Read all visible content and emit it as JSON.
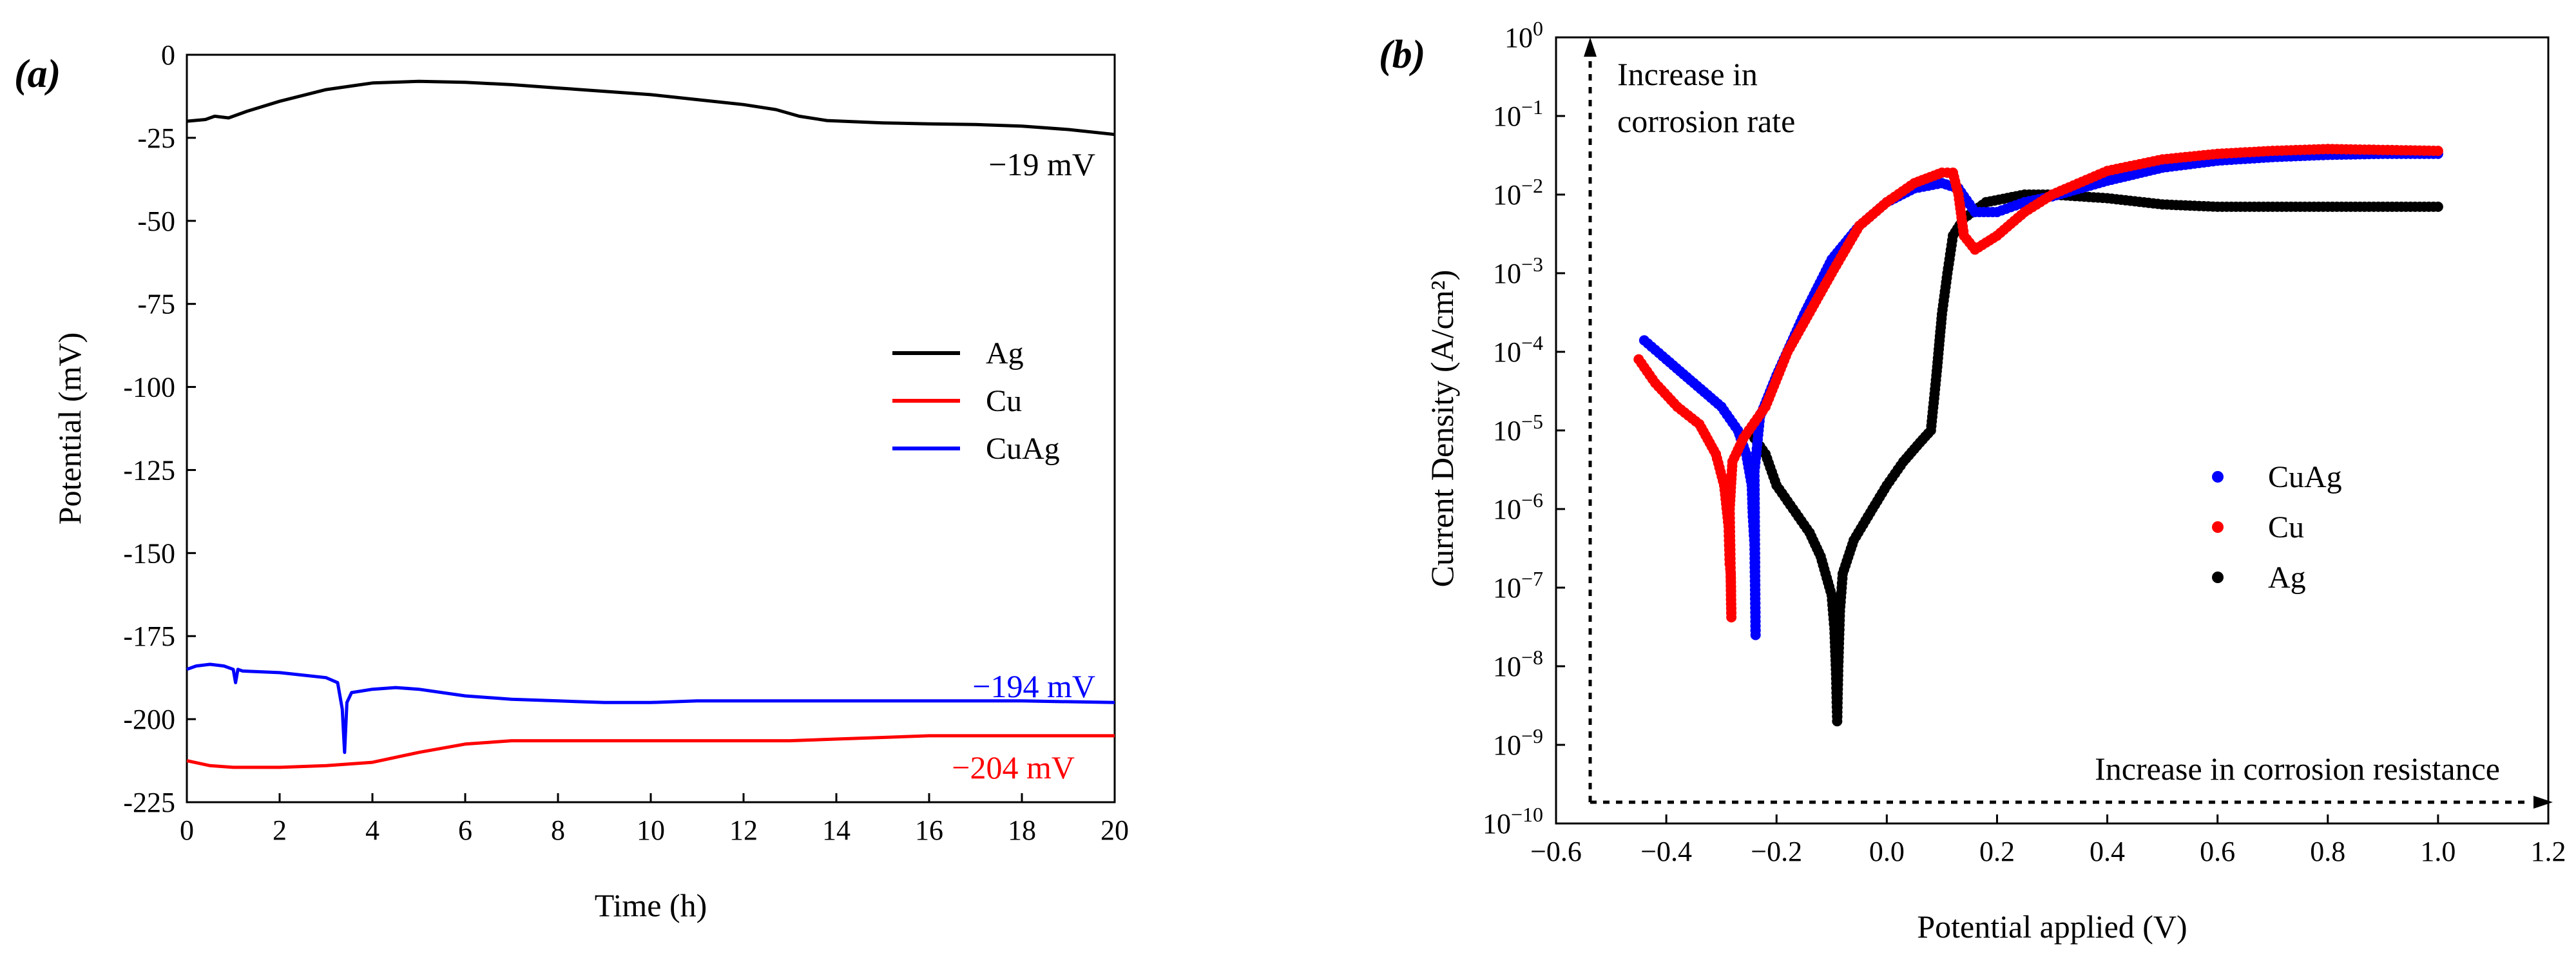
{
  "chart_data": [
    {
      "panel_label": "(a)",
      "type": "line",
      "xlabel": "Time (h)",
      "ylabel": "Potential (mV)",
      "xlim": [
        0,
        20
      ],
      "ylim": [
        -225,
        0
      ],
      "xticks": [
        0,
        2,
        4,
        6,
        8,
        10,
        12,
        14,
        16,
        18,
        20
      ],
      "yticks": [
        0,
        -25,
        -50,
        -75,
        -100,
        -125,
        -150,
        -175,
        -200,
        -225
      ],
      "x_tick_labels": [
        "0",
        "2",
        "4",
        "6",
        "8",
        "10",
        "12",
        "14",
        "16",
        "18",
        "20"
      ],
      "y_tick_labels": [
        "0",
        "-25",
        "-50",
        "-75",
        "-100",
        "-125",
        "-150",
        "-175",
        "-200",
        "-225"
      ],
      "grid": false,
      "legend_position": "center-right",
      "series": [
        {
          "name": "Ag",
          "color": "#000000",
          "annotation": "−19 mV",
          "x": [
            0,
            0.4,
            0.6,
            0.9,
            1.3,
            2,
            3,
            4,
            5,
            6,
            7,
            8,
            9,
            10,
            11,
            12,
            12.7,
            13.2,
            13.8,
            15,
            16,
            17,
            18,
            19,
            20
          ],
          "y": [
            -20,
            -19.5,
            -18.5,
            -19,
            -17,
            -14,
            -10.5,
            -8.5,
            -8,
            -8.3,
            -9,
            -10,
            -11,
            -12,
            -13.5,
            -15,
            -16.5,
            -18.5,
            -19.8,
            -20.5,
            -20.8,
            -21,
            -21.5,
            -22.5,
            -24
          ]
        },
        {
          "name": "Cu",
          "color": "#ff0000",
          "annotation": "−204 mV",
          "x": [
            0,
            0.5,
            1,
            2,
            3,
            4,
            5,
            6,
            7,
            8,
            9,
            10,
            11,
            12,
            13,
            14,
            15,
            16,
            17,
            18,
            19,
            20
          ],
          "y": [
            -212.5,
            -214,
            -214.5,
            -214.5,
            -214,
            -213,
            -210,
            -207.5,
            -206.5,
            -206.5,
            -206.5,
            -206.5,
            -206.5,
            -206.5,
            -206.5,
            -206,
            -205.5,
            -205,
            -205,
            -205,
            -205,
            -205
          ]
        },
        {
          "name": "CuAg",
          "color": "#0000ff",
          "annotation": "−194 mV",
          "x": [
            0,
            0.2,
            0.5,
            0.8,
            1,
            1.05,
            1.1,
            1.2,
            2,
            3,
            3.25,
            3.35,
            3.4,
            3.45,
            3.55,
            4,
            4.5,
            5,
            6,
            7,
            8,
            9,
            10,
            11,
            12,
            13,
            14,
            16,
            18,
            20
          ],
          "y": [
            -185,
            -184,
            -183.5,
            -184,
            -185,
            -189,
            -185,
            -185.5,
            -186,
            -187.5,
            -189,
            -197,
            -210,
            -195,
            -192,
            -191,
            -190.5,
            -191,
            -193,
            -194,
            -194.5,
            -195,
            -195,
            -194.5,
            -194.5,
            -194.5,
            -194.5,
            -194.5,
            -194.5,
            -195
          ]
        }
      ]
    },
    {
      "panel_label": "(b)",
      "type": "scatter",
      "xlabel": "Potential applied (V)",
      "ylabel": "Current Density (A/cm²)",
      "xlim": [
        -0.6,
        1.2
      ],
      "ylim": [
        1e-10,
        1
      ],
      "yscale": "log",
      "xticks": [
        -0.6,
        -0.4,
        -0.2,
        0.0,
        0.2,
        0.4,
        0.6,
        0.8,
        1.0,
        1.2
      ],
      "x_tick_labels": [
        "−0.6",
        "−0.4",
        "−0.2",
        "0.0",
        "0.2",
        "0.4",
        "0.6",
        "0.8",
        "1.0",
        "1.2"
      ],
      "y_tick_exponents": [
        "0",
        "−1",
        "−2",
        "−3",
        "−4",
        "−5",
        "−6",
        "−7",
        "−8",
        "−9",
        "−10"
      ],
      "y_tick_base": "10",
      "grid": false,
      "legend_position": "center-right",
      "annotations": [
        "Increase in",
        "corrosion rate",
        "Increase in corrosion resistance"
      ],
      "series": [
        {
          "name": "CuAg",
          "color": "#0000ff",
          "x": [
            -0.44,
            -0.4,
            -0.35,
            -0.3,
            -0.27,
            -0.255,
            -0.245,
            -0.243,
            -0.24,
            -0.238,
            -0.24,
            -0.23,
            -0.2,
            -0.15,
            -0.1,
            -0.05,
            0,
            0.05,
            0.1,
            0.13,
            0.16,
            0.2,
            0.25,
            0.3,
            0.4,
            0.5,
            0.6,
            0.7,
            0.8,
            0.9,
            1.0
          ],
          "y": [
            0.00014,
            8e-05,
            4e-05,
            2e-05,
            1e-05,
            5e-06,
            2e-06,
            8e-07,
            3.5e-07,
            2.5e-08,
            3e-06,
            1.5e-05,
            5e-05,
            0.0003,
            0.0015,
            0.004,
            0.008,
            0.012,
            0.014,
            0.012,
            0.006,
            0.006,
            0.008,
            0.0095,
            0.015,
            0.022,
            0.027,
            0.03,
            0.032,
            0.033,
            0.033
          ]
        },
        {
          "name": "Cu",
          "color": "#ff0000",
          "x": [
            -0.45,
            -0.42,
            -0.38,
            -0.34,
            -0.31,
            -0.295,
            -0.287,
            -0.285,
            -0.283,
            -0.282,
            -0.285,
            -0.28,
            -0.26,
            -0.22,
            -0.18,
            -0.1,
            -0.05,
            0,
            0.05,
            0.1,
            0.12,
            0.13,
            0.14,
            0.16,
            0.2,
            0.25,
            0.3,
            0.4,
            0.5,
            0.6,
            0.7,
            0.8,
            0.9,
            1.0
          ],
          "y": [
            8e-05,
            4e-05,
            2e-05,
            1.2e-05,
            5e-06,
            2e-06,
            6e-07,
            2e-07,
            1.5e-07,
            4.2e-08,
            1e-06,
            4e-06,
            8e-06,
            2e-05,
            0.0001,
            0.001,
            0.004,
            0.008,
            0.014,
            0.019,
            0.019,
            0.01,
            0.003,
            0.002,
            0.003,
            0.006,
            0.01,
            0.02,
            0.028,
            0.033,
            0.036,
            0.038,
            0.037,
            0.036
          ]
        },
        {
          "name": "Ag",
          "color": "#000000",
          "x": [
            -0.25,
            -0.22,
            -0.2,
            -0.17,
            -0.14,
            -0.12,
            -0.1,
            -0.095,
            -0.092,
            -0.09,
            -0.088,
            -0.085,
            -0.08,
            -0.06,
            -0.03,
            0,
            0.03,
            0.06,
            0.08,
            0.09,
            0.1,
            0.11,
            0.12,
            0.14,
            0.18,
            0.25,
            0.3,
            0.35,
            0.4,
            0.5,
            0.6,
            0.7,
            0.8,
            0.9,
            1.0
          ],
          "y": [
            1e-05,
            5e-06,
            2e-06,
            1e-06,
            5e-07,
            2.5e-07,
            8e-08,
            3e-08,
            8e-09,
            2e-09,
            1e-08,
            5e-08,
            1.5e-07,
            4e-07,
            9e-07,
            2e-06,
            4e-06,
            7e-06,
            1e-05,
            5e-05,
            0.0003,
            0.001,
            0.003,
            0.005,
            0.008,
            0.01,
            0.01,
            0.0095,
            0.009,
            0.0075,
            0.007,
            0.007,
            0.007,
            0.007,
            0.007
          ]
        }
      ]
    }
  ]
}
